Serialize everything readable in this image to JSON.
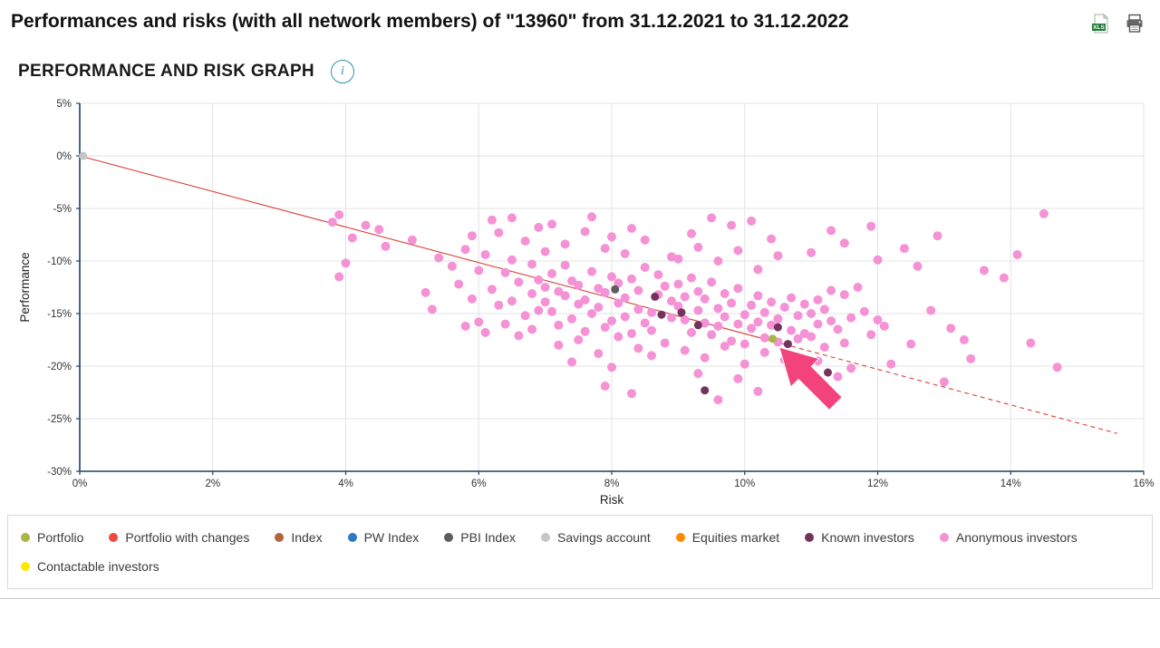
{
  "header": {
    "title": "Performances and risks (with all network members) of \"13960\" from 31.12.2021 to 31.12.2022"
  },
  "section": {
    "heading": "PERFORMANCE AND RISK GRAPH",
    "info_label": "i"
  },
  "chart_data": {
    "type": "scatter",
    "title": "",
    "xlabel": "Risk",
    "ylabel": "Performance",
    "xlim": [
      0,
      16
    ],
    "ylim": [
      -30,
      5
    ],
    "grid": true,
    "x_ticks": [
      0,
      2,
      4,
      6,
      8,
      10,
      12,
      14,
      16
    ],
    "x_tick_labels": [
      "0%",
      "2%",
      "4%",
      "6%",
      "8%",
      "10%",
      "12%",
      "14%",
      "16%"
    ],
    "y_ticks": [
      5,
      0,
      -5,
      -10,
      -15,
      -20,
      -25,
      -30
    ],
    "y_tick_labels": [
      "5%",
      "0%",
      "-5%",
      "-10%",
      "-15%",
      "-20%",
      "-25%",
      "-30%"
    ],
    "style": {
      "axis_color": "#1c3e63",
      "grid_color": "#e3e3e3",
      "tick_label_color": "#333333",
      "axis_label_color": "#222222"
    },
    "trend_line": {
      "color": "#d9403a",
      "solid": [
        [
          0,
          0
        ],
        [
          10.7,
          -18.1
        ]
      ],
      "dashed": [
        [
          10.7,
          -18.1
        ],
        [
          15.6,
          -26.4
        ]
      ]
    },
    "cursor_arrow": {
      "color": "#f2437c",
      "tip": [
        10.52,
        -18.2
      ]
    },
    "series": [
      {
        "name": "Portfolio",
        "color": "#a8b545",
        "radius": 4.5,
        "points": [
          [
            10.42,
            -17.4
          ]
        ]
      },
      {
        "name": "Portfolio with changes",
        "color": "#f0493f",
        "radius": 4.5,
        "points": []
      },
      {
        "name": "Index",
        "color": "#b2653a",
        "radius": 4.5,
        "points": []
      },
      {
        "name": "PW Index",
        "color": "#2e77c8",
        "radius": 4.5,
        "points": []
      },
      {
        "name": "PBI Index",
        "color": "#5c5c5c",
        "radius": 4.5,
        "points": [
          [
            8.05,
            -12.7
          ]
        ]
      },
      {
        "name": "Savings account",
        "color": "#c6c6c6",
        "radius": 4.5,
        "points": [
          [
            0.05,
            0
          ]
        ]
      },
      {
        "name": "Equities market",
        "color": "#ff8a00",
        "radius": 4.5,
        "points": []
      },
      {
        "name": "Known investors",
        "color": "#74335c",
        "radius": 4.5,
        "points": [
          [
            8.65,
            -13.4
          ],
          [
            8.75,
            -15.1
          ],
          [
            9.05,
            -14.9
          ],
          [
            9.3,
            -16.1
          ],
          [
            10.5,
            -16.3
          ],
          [
            10.65,
            -17.9
          ],
          [
            9.4,
            -22.3
          ],
          [
            11.25,
            -20.6
          ]
        ]
      },
      {
        "name": "Anonymous investors",
        "color": "#f591d5",
        "radius": 5,
        "points": [
          [
            3.8,
            -6.3
          ],
          [
            3.9,
            -5.6
          ],
          [
            4.1,
            -7.8
          ],
          [
            4.3,
            -6.6
          ],
          [
            4.5,
            -7.0
          ],
          [
            4.0,
            -10.2
          ],
          [
            3.9,
            -11.5
          ],
          [
            4.6,
            -8.6
          ],
          [
            5.0,
            -8.0
          ],
          [
            5.2,
            -13.0
          ],
          [
            5.4,
            -9.7
          ],
          [
            5.3,
            -14.6
          ],
          [
            5.6,
            -10.5
          ],
          [
            5.7,
            -12.2
          ],
          [
            5.8,
            -8.9
          ],
          [
            5.9,
            -13.6
          ],
          [
            6.0,
            -10.9
          ],
          [
            6.0,
            -15.8
          ],
          [
            6.1,
            -9.4
          ],
          [
            6.2,
            -12.7
          ],
          [
            6.3,
            -14.2
          ],
          [
            6.3,
            -7.3
          ],
          [
            6.4,
            -11.1
          ],
          [
            6.5,
            -13.8
          ],
          [
            6.5,
            -9.9
          ],
          [
            6.6,
            -12.0
          ],
          [
            6.7,
            -15.2
          ],
          [
            6.7,
            -8.1
          ],
          [
            6.8,
            -13.1
          ],
          [
            6.8,
            -10.3
          ],
          [
            6.9,
            -14.7
          ],
          [
            6.9,
            -11.8
          ],
          [
            5.8,
            -16.2
          ],
          [
            6.1,
            -16.8
          ],
          [
            6.4,
            -16.0
          ],
          [
            6.6,
            -17.1
          ],
          [
            6.2,
            -6.1
          ],
          [
            6.9,
            -6.8
          ],
          [
            5.9,
            -7.6
          ],
          [
            6.8,
            -16.5
          ],
          [
            6.5,
            -5.9
          ],
          [
            7.0,
            -12.5
          ],
          [
            7.0,
            -13.9
          ],
          [
            7.1,
            -11.2
          ],
          [
            7.1,
            -14.8
          ],
          [
            7.2,
            -12.9
          ],
          [
            7.2,
            -16.1
          ],
          [
            7.3,
            -10.4
          ],
          [
            7.3,
            -13.3
          ],
          [
            7.4,
            -15.5
          ],
          [
            7.4,
            -11.9
          ],
          [
            7.5,
            -14.1
          ],
          [
            7.5,
            -12.3
          ],
          [
            7.6,
            -16.7
          ],
          [
            7.6,
            -13.7
          ],
          [
            7.7,
            -11.0
          ],
          [
            7.7,
            -15.0
          ],
          [
            7.8,
            -12.6
          ],
          [
            7.8,
            -14.4
          ],
          [
            7.9,
            -16.3
          ],
          [
            7.9,
            -13.0
          ],
          [
            8.0,
            -15.7
          ],
          [
            8.0,
            -11.5
          ],
          [
            8.1,
            -14.0
          ],
          [
            8.1,
            -12.1
          ],
          [
            8.2,
            -15.3
          ],
          [
            8.2,
            -13.5
          ],
          [
            8.3,
            -16.9
          ],
          [
            8.3,
            -11.7
          ],
          [
            8.4,
            -14.6
          ],
          [
            8.4,
            -12.8
          ],
          [
            8.5,
            -15.9
          ],
          [
            7.0,
            -9.1
          ],
          [
            7.3,
            -8.4
          ],
          [
            7.6,
            -7.2
          ],
          [
            7.9,
            -8.8
          ],
          [
            8.2,
            -9.3
          ],
          [
            8.5,
            -8.0
          ],
          [
            7.1,
            -6.5
          ],
          [
            7.7,
            -5.8
          ],
          [
            8.3,
            -6.9
          ],
          [
            8.0,
            -7.7
          ],
          [
            7.2,
            -18.0
          ],
          [
            7.5,
            -17.5
          ],
          [
            7.8,
            -18.8
          ],
          [
            8.1,
            -17.2
          ],
          [
            8.4,
            -18.3
          ],
          [
            7.4,
            -19.6
          ],
          [
            8.0,
            -20.1
          ],
          [
            8.6,
            -19.0
          ],
          [
            7.9,
            -21.9
          ],
          [
            8.3,
            -22.6
          ],
          [
            8.7,
            -13.2
          ],
          [
            8.6,
            -14.9
          ],
          [
            8.8,
            -12.4
          ],
          [
            8.9,
            -15.4
          ],
          [
            8.7,
            -11.3
          ],
          [
            8.9,
            -13.8
          ],
          [
            8.6,
            -16.6
          ],
          [
            8.8,
            -17.8
          ],
          [
            8.5,
            -10.6
          ],
          [
            8.9,
            -9.6
          ],
          [
            9.0,
            -14.3
          ],
          [
            9.0,
            -12.2
          ],
          [
            9.1,
            -15.6
          ],
          [
            9.1,
            -13.4
          ],
          [
            9.2,
            -16.8
          ],
          [
            9.2,
            -11.6
          ],
          [
            9.3,
            -14.7
          ],
          [
            9.3,
            -12.9
          ],
          [
            9.4,
            -15.9
          ],
          [
            9.4,
            -13.6
          ],
          [
            9.5,
            -17.0
          ],
          [
            9.5,
            -12.0
          ],
          [
            9.6,
            -14.5
          ],
          [
            9.6,
            -16.2
          ],
          [
            9.7,
            -13.1
          ],
          [
            9.7,
            -15.3
          ],
          [
            9.8,
            -17.6
          ],
          [
            9.8,
            -14.0
          ],
          [
            9.9,
            -16.0
          ],
          [
            9.9,
            -12.6
          ],
          [
            10.0,
            -15.1
          ],
          [
            10.0,
            -17.9
          ],
          [
            10.1,
            -14.2
          ],
          [
            10.1,
            -16.4
          ],
          [
            10.2,
            -13.3
          ],
          [
            10.2,
            -15.8
          ],
          [
            10.3,
            -17.3
          ],
          [
            10.3,
            -14.9
          ],
          [
            10.4,
            -16.1
          ],
          [
            10.4,
            -13.9
          ],
          [
            10.5,
            -15.5
          ],
          [
            10.5,
            -17.7
          ],
          [
            9.0,
            -9.8
          ],
          [
            9.3,
            -8.7
          ],
          [
            9.6,
            -10.0
          ],
          [
            9.9,
            -9.0
          ],
          [
            10.2,
            -10.8
          ],
          [
            10.5,
            -9.5
          ],
          [
            9.2,
            -7.4
          ],
          [
            9.8,
            -6.6
          ],
          [
            10.4,
            -7.9
          ],
          [
            9.5,
            -5.9
          ],
          [
            10.1,
            -6.2
          ],
          [
            9.1,
            -18.5
          ],
          [
            9.4,
            -19.2
          ],
          [
            9.7,
            -18.1
          ],
          [
            10.0,
            -19.8
          ],
          [
            10.3,
            -18.7
          ],
          [
            10.6,
            -19.4
          ],
          [
            9.3,
            -20.7
          ],
          [
            9.9,
            -21.2
          ],
          [
            10.2,
            -22.4
          ],
          [
            9.6,
            -23.2
          ],
          [
            10.6,
            -14.4
          ],
          [
            10.7,
            -16.6
          ],
          [
            10.7,
            -13.5
          ],
          [
            10.8,
            -15.2
          ],
          [
            10.8,
            -17.4
          ],
          [
            10.9,
            -14.1
          ],
          [
            10.9,
            -16.9
          ],
          [
            11.0,
            -15.0
          ],
          [
            11.0,
            -17.2
          ],
          [
            11.1,
            -13.7
          ],
          [
            11.1,
            -16.0
          ],
          [
            11.2,
            -14.6
          ],
          [
            11.2,
            -18.2
          ],
          [
            11.3,
            -15.7
          ],
          [
            11.3,
            -12.8
          ],
          [
            11.4,
            -16.5
          ],
          [
            11.5,
            -17.8
          ],
          [
            11.5,
            -13.2
          ],
          [
            11.6,
            -15.4
          ],
          [
            11.7,
            -12.5
          ],
          [
            11.8,
            -14.8
          ],
          [
            11.9,
            -17.0
          ],
          [
            12.0,
            -15.6
          ],
          [
            11.0,
            -9.2
          ],
          [
            11.5,
            -8.3
          ],
          [
            12.0,
            -9.9
          ],
          [
            11.3,
            -7.1
          ],
          [
            11.9,
            -6.7
          ],
          [
            11.1,
            -19.5
          ],
          [
            11.6,
            -20.2
          ],
          [
            11.4,
            -21.0
          ],
          [
            12.4,
            -8.8
          ],
          [
            12.6,
            -10.5
          ],
          [
            12.9,
            -7.6
          ],
          [
            13.1,
            -16.4
          ],
          [
            13.3,
            -17.5
          ],
          [
            13.4,
            -19.3
          ],
          [
            13.6,
            -10.9
          ],
          [
            13.9,
            -11.6
          ],
          [
            14.1,
            -9.4
          ],
          [
            14.3,
            -17.8
          ],
          [
            14.5,
            -5.5
          ],
          [
            14.7,
            -20.1
          ],
          [
            13.0,
            -21.5
          ],
          [
            12.5,
            -17.9
          ],
          [
            12.8,
            -14.7
          ],
          [
            12.2,
            -19.8
          ],
          [
            12.1,
            -16.2
          ]
        ]
      },
      {
        "name": "Contactable investors",
        "color": "#ffe800",
        "radius": 4.5,
        "points": []
      }
    ]
  },
  "legend": {
    "rows": [
      [
        {
          "label": "Portfolio",
          "color": "#a8b545"
        },
        {
          "label": "Portfolio with changes",
          "color": "#f0493f"
        },
        {
          "label": "Index",
          "color": "#b2653a"
        },
        {
          "label": "PW Index",
          "color": "#2e77c8"
        },
        {
          "label": "PBI Index",
          "color": "#5c5c5c"
        },
        {
          "label": "Savings account",
          "color": "#c6c6c6"
        },
        {
          "label": "Equities market",
          "color": "#ff8a00"
        },
        {
          "label": "Known investors",
          "color": "#74335c"
        },
        {
          "label": "Anonymous investors",
          "color": "#f591d5"
        }
      ],
      [
        {
          "label": "Contactable investors",
          "color": "#ffe800"
        }
      ]
    ]
  }
}
